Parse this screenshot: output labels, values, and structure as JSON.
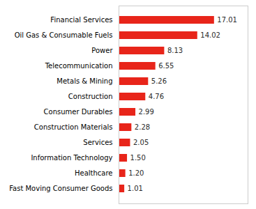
{
  "chart_data": {
    "type": "bar",
    "orientation": "horizontal",
    "categories": [
      "Fast Moving Consumer Goods",
      "Healthcare",
      "Information Technology",
      "Services",
      "Construction Materials",
      "Consumer Durables",
      "Construction",
      "Metals & Mining",
      "Telecommunication",
      "Power",
      "Oil Gas & Consumable Fuels",
      "Financial Services"
    ],
    "values": [
      1.01,
      1.2,
      1.5,
      2.05,
      2.28,
      2.99,
      4.76,
      5.26,
      6.55,
      8.13,
      14.02,
      17.01
    ],
    "value_labels": [
      "1.01",
      "1.20",
      "1.50",
      "2.05",
      "2.28",
      "2.99",
      "4.76",
      "5.26",
      "6.55",
      "8.13",
      "14.02",
      "17.01"
    ],
    "data_labels": true,
    "color": "#e8251a",
    "xlim": [
      0,
      23
    ],
    "tick_labels": "y",
    "grid": false
  }
}
